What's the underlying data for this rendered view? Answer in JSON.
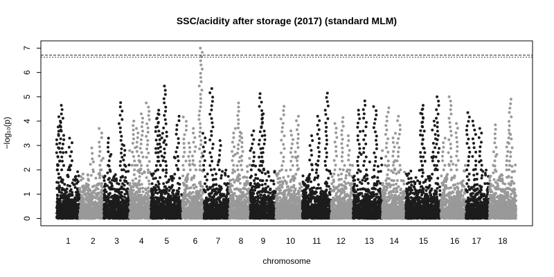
{
  "chart_data": {
    "type": "scatter",
    "title": "SSC/acidity after storage (2017) (standard MLM)",
    "xlabel": "chromosome",
    "ylabel": "−log₁₀(p)",
    "ylim": [
      -0.3,
      7.3
    ],
    "yticks": [
      0,
      1,
      2,
      3,
      4,
      5,
      6,
      7
    ],
    "grid": false,
    "threshold_lines": [
      6.63,
      6.71
    ],
    "colors": {
      "odd": "#1c1c1c",
      "even": "#999999"
    },
    "chromosomes": [
      {
        "label": "1",
        "peaks": [
          [
            0.25,
            4.65
          ],
          [
            0.1,
            4.18
          ],
          [
            0.05,
            3.76
          ],
          [
            0.6,
            3.3
          ]
        ]
      },
      {
        "label": "2",
        "peaks": [
          [
            0.85,
            3.7
          ],
          [
            0.5,
            2.9
          ]
        ]
      },
      {
        "label": "3",
        "peaks": [
          [
            0.65,
            4.76
          ],
          [
            0.2,
            3.3
          ],
          [
            0.8,
            3.0
          ]
        ]
      },
      {
        "label": "4",
        "peaks": [
          [
            0.85,
            4.75
          ],
          [
            0.55,
            4.3
          ],
          [
            0.2,
            4.0
          ],
          [
            0.4,
            3.7
          ]
        ]
      },
      {
        "label": "5",
        "peaks": [
          [
            0.45,
            5.44
          ],
          [
            0.2,
            4.45
          ],
          [
            0.25,
            4.3
          ],
          [
            0.85,
            4.2
          ],
          [
            0.35,
            3.5
          ]
        ]
      },
      {
        "label": "6",
        "peaks": [
          [
            0.85,
            7.0
          ],
          [
            0.1,
            4.17
          ],
          [
            0.55,
            3.7
          ],
          [
            0.3,
            3.1
          ]
        ]
      },
      {
        "label": "7",
        "peaks": [
          [
            0.3,
            5.34
          ],
          [
            0.0,
            3.5
          ],
          [
            0.6,
            3.2
          ]
        ]
      },
      {
        "label": "8",
        "peaks": [
          [
            0.45,
            4.75
          ],
          [
            0.2,
            3.7
          ],
          [
            0.6,
            3.5
          ]
        ]
      },
      {
        "label": "9",
        "peaks": [
          [
            0.4,
            5.13
          ],
          [
            0.5,
            4.3
          ],
          [
            0.1,
            3.6
          ]
        ]
      },
      {
        "label": "10",
        "peaks": [
          [
            0.25,
            4.61
          ],
          [
            0.8,
            4.2
          ],
          [
            0.6,
            3.6
          ]
        ]
      },
      {
        "label": "11",
        "peaks": [
          [
            0.85,
            5.15
          ],
          [
            0.55,
            4.2
          ],
          [
            0.3,
            3.4
          ]
        ]
      },
      {
        "label": "12",
        "peaks": [
          [
            0.55,
            4.15
          ],
          [
            0.2,
            3.9
          ],
          [
            0.8,
            3.4
          ]
        ]
      },
      {
        "label": "13",
        "peaks": [
          [
            0.4,
            4.83
          ],
          [
            0.2,
            4.45
          ],
          [
            0.75,
            4.6
          ]
        ]
      },
      {
        "label": "14",
        "peaks": [
          [
            0.2,
            4.55
          ],
          [
            0.7,
            4.2
          ],
          [
            0.5,
            3.5
          ]
        ]
      },
      {
        "label": "15",
        "peaks": [
          [
            0.9,
            5.0
          ],
          [
            0.5,
            4.65
          ],
          [
            0.45,
            4.5
          ],
          [
            0.8,
            4.0
          ]
        ]
      },
      {
        "label": "16",
        "peaks": [
          [
            0.35,
            5.0
          ],
          [
            0.65,
            3.9
          ],
          [
            0.1,
            3.3
          ]
        ]
      },
      {
        "label": "17",
        "peaks": [
          [
            0.1,
            4.35
          ],
          [
            0.35,
            4.0
          ],
          [
            0.6,
            3.7
          ]
        ]
      },
      {
        "label": "18",
        "peaks": [
          [
            0.8,
            4.9
          ],
          [
            0.2,
            3.85
          ],
          [
            0.7,
            3.5
          ]
        ]
      }
    ]
  }
}
